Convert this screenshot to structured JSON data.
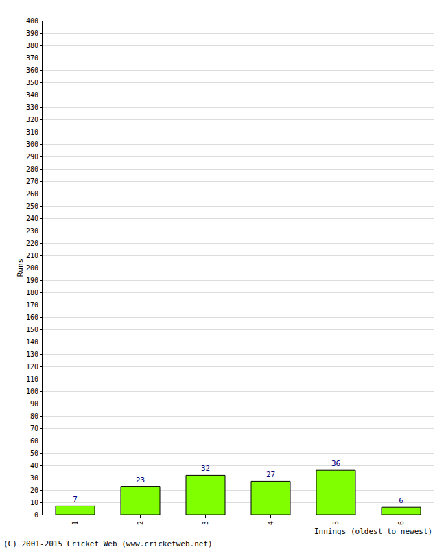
{
  "chart_data": {
    "type": "bar",
    "y_label": "Runs",
    "x_label": "Innings (oldest to newest)",
    "annotations": [
      "(C) 2001-2015 Cricket Web (www.cricketweb.net)"
    ],
    "categories": [
      "1",
      "2",
      "3",
      "4",
      "5",
      "6"
    ],
    "values": [
      7,
      23,
      32,
      27,
      36,
      6
    ],
    "color": "#80ff00",
    "data_labels": true,
    "grid": true,
    "ylim": [
      0,
      400
    ],
    "yticks": [
      0,
      10,
      20,
      30,
      40,
      50,
      60,
      70,
      80,
      90,
      100,
      110,
      120,
      130,
      140,
      150,
      160,
      170,
      180,
      190,
      200,
      210,
      220,
      230,
      240,
      250,
      260,
      270,
      280,
      290,
      300,
      310,
      320,
      330,
      340,
      350,
      360,
      370,
      380,
      390,
      400
    ]
  }
}
